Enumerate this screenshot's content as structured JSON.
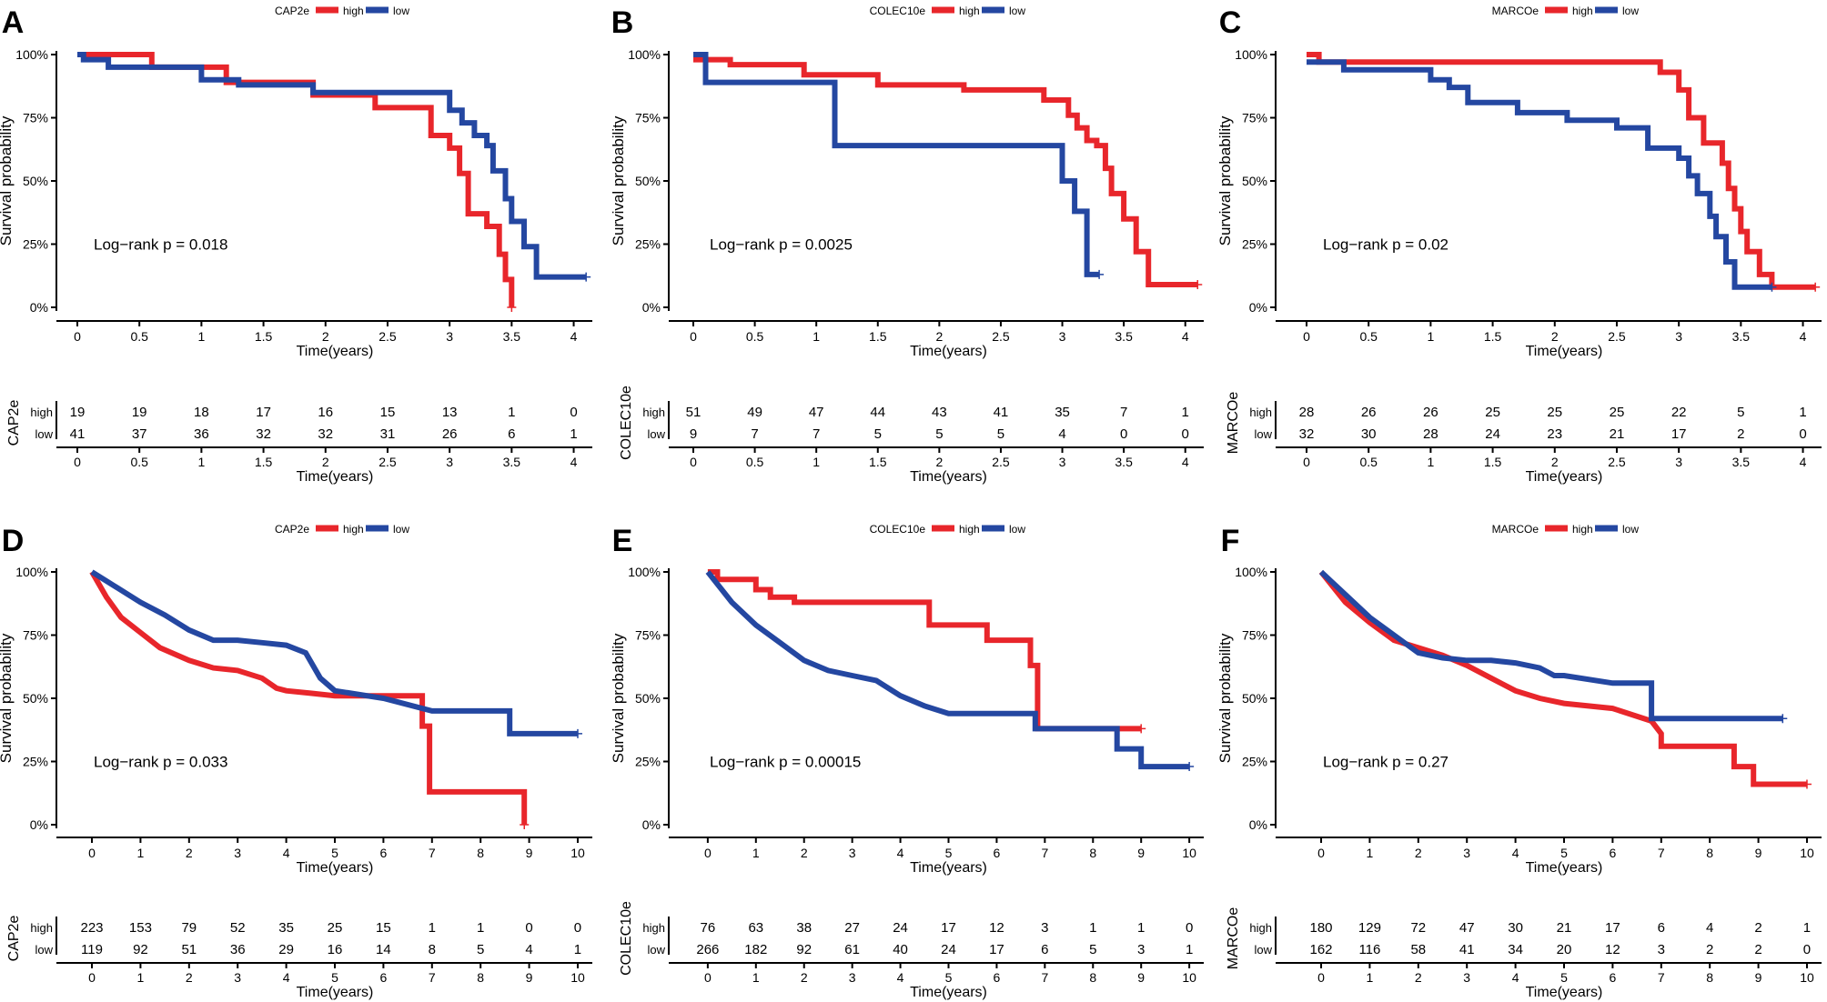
{
  "colors": {
    "high": "#e8262b",
    "low": "#2447a1",
    "axis": "#000000"
  },
  "labels": {
    "xlabel": "Time(years)",
    "ylabel": "Survival probability",
    "legend_high": "high",
    "legend_low": "low",
    "risk_high": "high",
    "risk_low": "low"
  },
  "chart_data": [
    {
      "type": "line",
      "panel": "A",
      "gene": "CAP2e",
      "xlim": [
        0,
        4.15
      ],
      "xticks": [
        "0",
        "0.5",
        "1",
        "1.5",
        "2",
        "2.5",
        "3",
        "3.5",
        "4"
      ],
      "xtick_vals": [
        0,
        0.5,
        1,
        1.5,
        2,
        2.5,
        3,
        3.5,
        4
      ],
      "yticks": [
        "0%",
        "25%",
        "50%",
        "75%",
        "100%"
      ],
      "ylim": [
        0,
        1
      ],
      "pvalue_text": "Log−rank p = 0.018",
      "series": [
        {
          "name": "high",
          "x": [
            0,
            0.6,
            0.6,
            1.2,
            1.2,
            1.9,
            1.9,
            2.4,
            2.4,
            2.85,
            2.85,
            3.0,
            3.0,
            3.08,
            3.08,
            3.15,
            3.15,
            3.3,
            3.3,
            3.4,
            3.4,
            3.45,
            3.45,
            3.5,
            3.5
          ],
          "y": [
            1.0,
            1.0,
            0.95,
            0.95,
            0.89,
            0.89,
            0.84,
            0.84,
            0.79,
            0.79,
            0.68,
            0.68,
            0.63,
            0.63,
            0.53,
            0.53,
            0.37,
            0.37,
            0.32,
            0.32,
            0.21,
            0.21,
            0.11,
            0.11,
            0.0
          ]
        },
        {
          "name": "low",
          "x": [
            0,
            0.05,
            0.05,
            0.25,
            0.25,
            1.0,
            1.0,
            1.3,
            1.3,
            1.9,
            1.9,
            2.5,
            2.5,
            3.0,
            3.0,
            3.1,
            3.1,
            3.2,
            3.2,
            3.3,
            3.3,
            3.35,
            3.35,
            3.45,
            3.45,
            3.5,
            3.5,
            3.6,
            3.6,
            3.7,
            3.7,
            4.1
          ],
          "y": [
            1.0,
            1.0,
            0.98,
            0.98,
            0.95,
            0.95,
            0.9,
            0.9,
            0.88,
            0.88,
            0.85,
            0.85,
            0.85,
            0.85,
            0.78,
            0.78,
            0.73,
            0.73,
            0.68,
            0.68,
            0.64,
            0.64,
            0.54,
            0.54,
            0.43,
            0.43,
            0.34,
            0.34,
            0.24,
            0.24,
            0.12,
            0.12
          ]
        }
      ],
      "risk_times": [
        0,
        0.5,
        1,
        1.5,
        2,
        2.5,
        3,
        3.5,
        4
      ],
      "risk_high": [
        "19",
        "19",
        "18",
        "17",
        "16",
        "15",
        "13",
        "1",
        "0"
      ],
      "risk_low": [
        "41",
        "37",
        "36",
        "32",
        "32",
        "31",
        "26",
        "6",
        "1"
      ]
    },
    {
      "type": "line",
      "panel": "B",
      "gene": "COLEC10e",
      "xlim": [
        0,
        4.15
      ],
      "xticks": [
        "0",
        "0.5",
        "1",
        "1.5",
        "2",
        "2.5",
        "3",
        "3.5",
        "4"
      ],
      "xtick_vals": [
        0,
        0.5,
        1,
        1.5,
        2,
        2.5,
        3,
        3.5,
        4
      ],
      "yticks": [
        "0%",
        "25%",
        "50%",
        "75%",
        "100%"
      ],
      "ylim": [
        0,
        1
      ],
      "pvalue_text": "Log−rank p = 0.0025",
      "series": [
        {
          "name": "high",
          "x": [
            0,
            0.3,
            0.3,
            0.9,
            0.9,
            1.5,
            1.5,
            2.2,
            2.2,
            2.85,
            2.85,
            3.05,
            3.05,
            3.12,
            3.12,
            3.2,
            3.2,
            3.28,
            3.28,
            3.35,
            3.35,
            3.4,
            3.4,
            3.5,
            3.5,
            3.6,
            3.6,
            3.7,
            3.7,
            4.1
          ],
          "y": [
            0.98,
            0.98,
            0.96,
            0.96,
            0.92,
            0.92,
            0.88,
            0.88,
            0.86,
            0.86,
            0.82,
            0.82,
            0.76,
            0.76,
            0.71,
            0.71,
            0.66,
            0.66,
            0.64,
            0.64,
            0.55,
            0.55,
            0.45,
            0.45,
            0.35,
            0.35,
            0.22,
            0.22,
            0.09,
            0.09
          ]
        },
        {
          "name": "low",
          "x": [
            0,
            0.1,
            0.1,
            1.15,
            1.15,
            3.0,
            3.0,
            3.1,
            3.1,
            3.2,
            3.2,
            3.3
          ],
          "y": [
            1.0,
            1.0,
            0.89,
            0.89,
            0.64,
            0.64,
            0.5,
            0.5,
            0.38,
            0.38,
            0.13,
            0.13
          ]
        }
      ],
      "risk_times": [
        0,
        0.5,
        1,
        1.5,
        2,
        2.5,
        3,
        3.5,
        4
      ],
      "risk_high": [
        "51",
        "49",
        "47",
        "44",
        "43",
        "41",
        "35",
        "7",
        "1"
      ],
      "risk_low": [
        "9",
        "7",
        "7",
        "5",
        "5",
        "5",
        "4",
        "0",
        "0"
      ]
    },
    {
      "type": "line",
      "panel": "C",
      "gene": "MARCOe",
      "xlim": [
        0,
        4.15
      ],
      "xticks": [
        "0",
        "0.5",
        "1",
        "1.5",
        "2",
        "2.5",
        "3",
        "3.5",
        "4"
      ],
      "xtick_vals": [
        0,
        0.5,
        1,
        1.5,
        2,
        2.5,
        3,
        3.5,
        4
      ],
      "yticks": [
        "0%",
        "25%",
        "50%",
        "75%",
        "100%"
      ],
      "ylim": [
        0,
        1
      ],
      "pvalue_text": "Log−rank p = 0.02",
      "series": [
        {
          "name": "high",
          "x": [
            0,
            0.1,
            0.1,
            2.85,
            2.85,
            3.0,
            3.0,
            3.08,
            3.08,
            3.2,
            3.2,
            3.35,
            3.35,
            3.4,
            3.4,
            3.45,
            3.45,
            3.5,
            3.5,
            3.55,
            3.55,
            3.65,
            3.65,
            3.75,
            3.75,
            4.1
          ],
          "y": [
            1.0,
            1.0,
            0.97,
            0.97,
            0.93,
            0.93,
            0.86,
            0.86,
            0.75,
            0.75,
            0.65,
            0.65,
            0.57,
            0.57,
            0.47,
            0.47,
            0.39,
            0.39,
            0.3,
            0.3,
            0.22,
            0.22,
            0.13,
            0.13,
            0.08,
            0.08
          ]
        },
        {
          "name": "low",
          "x": [
            0,
            0.3,
            0.3,
            1.0,
            1.0,
            1.15,
            1.15,
            1.3,
            1.3,
            1.7,
            1.7,
            2.1,
            2.1,
            2.5,
            2.5,
            2.75,
            2.75,
            3.0,
            3.0,
            3.08,
            3.08,
            3.15,
            3.15,
            3.25,
            3.25,
            3.3,
            3.3,
            3.38,
            3.38,
            3.45,
            3.45,
            3.75
          ],
          "y": [
            0.97,
            0.97,
            0.94,
            0.94,
            0.9,
            0.9,
            0.87,
            0.87,
            0.81,
            0.81,
            0.77,
            0.77,
            0.74,
            0.74,
            0.71,
            0.71,
            0.63,
            0.63,
            0.59,
            0.59,
            0.52,
            0.52,
            0.45,
            0.45,
            0.36,
            0.36,
            0.28,
            0.28,
            0.18,
            0.18,
            0.08,
            0.08
          ]
        }
      ],
      "risk_times": [
        0,
        0.5,
        1,
        1.5,
        2,
        2.5,
        3,
        3.5,
        4
      ],
      "risk_high": [
        "28",
        "26",
        "26",
        "25",
        "25",
        "25",
        "22",
        "5",
        "1"
      ],
      "risk_low": [
        "32",
        "30",
        "28",
        "24",
        "23",
        "21",
        "17",
        "2",
        "0"
      ]
    },
    {
      "type": "line",
      "panel": "D",
      "gene": "CAP2e",
      "xlim": [
        -0.3,
        10.3
      ],
      "xticks": [
        "0",
        "1",
        "2",
        "3",
        "4",
        "5",
        "6",
        "7",
        "8",
        "9",
        "10"
      ],
      "xtick_vals": [
        0,
        1,
        2,
        3,
        4,
        5,
        6,
        7,
        8,
        9,
        10
      ],
      "yticks": [
        "0%",
        "25%",
        "50%",
        "75%",
        "100%"
      ],
      "ylim": [
        0,
        1
      ],
      "pvalue_text": "Log−rank p = 0.033",
      "series": [
        {
          "name": "high",
          "x": [
            0,
            0.3,
            0.6,
            1.0,
            1.4,
            2.0,
            2.5,
            3.0,
            3.5,
            3.8,
            4.0,
            4.5,
            5.0,
            6.0,
            6.8,
            6.8,
            6.95,
            6.95,
            8.9,
            8.9
          ],
          "y": [
            1.0,
            0.9,
            0.82,
            0.76,
            0.7,
            0.65,
            0.62,
            0.61,
            0.58,
            0.54,
            0.53,
            0.52,
            0.51,
            0.51,
            0.51,
            0.39,
            0.39,
            0.13,
            0.13,
            0.0
          ]
        },
        {
          "name": "low",
          "x": [
            0,
            0.5,
            1.0,
            1.5,
            2.0,
            2.5,
            3.0,
            3.5,
            4.0,
            4.4,
            4.7,
            5.0,
            6.0,
            7.0,
            8.0,
            8.6,
            8.6,
            10.0
          ],
          "y": [
            1.0,
            0.94,
            0.88,
            0.83,
            0.77,
            0.73,
            0.73,
            0.72,
            0.71,
            0.68,
            0.58,
            0.53,
            0.5,
            0.45,
            0.45,
            0.45,
            0.36,
            0.36
          ]
        }
      ],
      "risk_times": [
        0,
        1,
        2,
        3,
        4,
        5,
        6,
        7,
        8,
        9,
        10
      ],
      "risk_high": [
        "223",
        "153",
        "79",
        "52",
        "35",
        "25",
        "15",
        "1",
        "1",
        "0",
        "0"
      ],
      "risk_low": [
        "119",
        "92",
        "51",
        "36",
        "29",
        "16",
        "14",
        "8",
        "5",
        "4",
        "1"
      ]
    },
    {
      "type": "line",
      "panel": "E",
      "gene": "COLEC10e",
      "xlim": [
        -0.3,
        10.3
      ],
      "xticks": [
        "0",
        "1",
        "2",
        "3",
        "4",
        "5",
        "6",
        "7",
        "8",
        "9",
        "10"
      ],
      "xtick_vals": [
        0,
        1,
        2,
        3,
        4,
        5,
        6,
        7,
        8,
        9,
        10
      ],
      "yticks": [
        "0%",
        "25%",
        "50%",
        "75%",
        "100%"
      ],
      "ylim": [
        0,
        1
      ],
      "pvalue_text": "Log−rank  p = 0.00015",
      "series": [
        {
          "name": "high",
          "x": [
            0,
            0.2,
            0.2,
            1.0,
            1.0,
            1.3,
            1.3,
            1.8,
            1.8,
            4.6,
            4.6,
            5.8,
            5.8,
            6.7,
            6.7,
            6.85,
            6.85,
            9.0
          ],
          "y": [
            1.0,
            1.0,
            0.97,
            0.97,
            0.93,
            0.93,
            0.9,
            0.9,
            0.88,
            0.88,
            0.79,
            0.79,
            0.73,
            0.73,
            0.63,
            0.63,
            0.38,
            0.38
          ]
        },
        {
          "name": "low",
          "x": [
            0,
            0.5,
            1.0,
            1.5,
            2.0,
            2.5,
            3.0,
            3.5,
            4.0,
            4.5,
            5.0,
            6.0,
            6.8,
            6.8,
            8.5,
            8.5,
            9.0,
            9.0,
            10.0
          ],
          "y": [
            1.0,
            0.88,
            0.79,
            0.72,
            0.65,
            0.61,
            0.59,
            0.57,
            0.51,
            0.47,
            0.44,
            0.44,
            0.44,
            0.38,
            0.38,
            0.3,
            0.3,
            0.23,
            0.23
          ]
        }
      ],
      "risk_times": [
        0,
        1,
        2,
        3,
        4,
        5,
        6,
        7,
        8,
        9,
        10
      ],
      "risk_high": [
        "76",
        "63",
        "38",
        "27",
        "24",
        "17",
        "12",
        "3",
        "1",
        "1",
        "0"
      ],
      "risk_low": [
        "266",
        "182",
        "92",
        "61",
        "40",
        "24",
        "17",
        "6",
        "5",
        "3",
        "1"
      ]
    },
    {
      "type": "line",
      "panel": "F",
      "gene": "MARCOe",
      "xlim": [
        -0.3,
        10.3
      ],
      "xticks": [
        "0",
        "1",
        "2",
        "3",
        "4",
        "5",
        "6",
        "7",
        "8",
        "9",
        "10"
      ],
      "xtick_vals": [
        0,
        1,
        2,
        3,
        4,
        5,
        6,
        7,
        8,
        9,
        10
      ],
      "yticks": [
        "0%",
        "25%",
        "50%",
        "75%",
        "100%"
      ],
      "ylim": [
        0,
        1
      ],
      "pvalue_text": "Log−rank p = 0.27",
      "series": [
        {
          "name": "high",
          "x": [
            0,
            0.5,
            1.0,
            1.5,
            2.0,
            2.5,
            3.0,
            3.5,
            4.0,
            4.5,
            5.0,
            6.0,
            6.8,
            7.0,
            7.0,
            8.5,
            8.5,
            8.9,
            8.9,
            10.0
          ],
          "y": [
            1.0,
            0.88,
            0.8,
            0.73,
            0.7,
            0.67,
            0.63,
            0.58,
            0.53,
            0.5,
            0.48,
            0.46,
            0.41,
            0.36,
            0.31,
            0.31,
            0.23,
            0.23,
            0.16,
            0.16
          ]
        },
        {
          "name": "low",
          "x": [
            0,
            0.5,
            1.0,
            1.5,
            2.0,
            2.5,
            3.0,
            3.5,
            4.0,
            4.5,
            4.8,
            5.0,
            6.0,
            6.8,
            6.8,
            9.5
          ],
          "y": [
            1.0,
            0.91,
            0.82,
            0.75,
            0.68,
            0.66,
            0.65,
            0.65,
            0.64,
            0.62,
            0.59,
            0.59,
            0.56,
            0.56,
            0.42,
            0.42
          ]
        }
      ],
      "risk_times": [
        0,
        1,
        2,
        3,
        4,
        5,
        6,
        7,
        8,
        9,
        10
      ],
      "risk_high": [
        "180",
        "129",
        "72",
        "47",
        "30",
        "21",
        "17",
        "6",
        "4",
        "2",
        "1"
      ],
      "risk_low": [
        "162",
        "116",
        "58",
        "41",
        "34",
        "20",
        "12",
        "3",
        "2",
        "2",
        "0"
      ]
    }
  ]
}
